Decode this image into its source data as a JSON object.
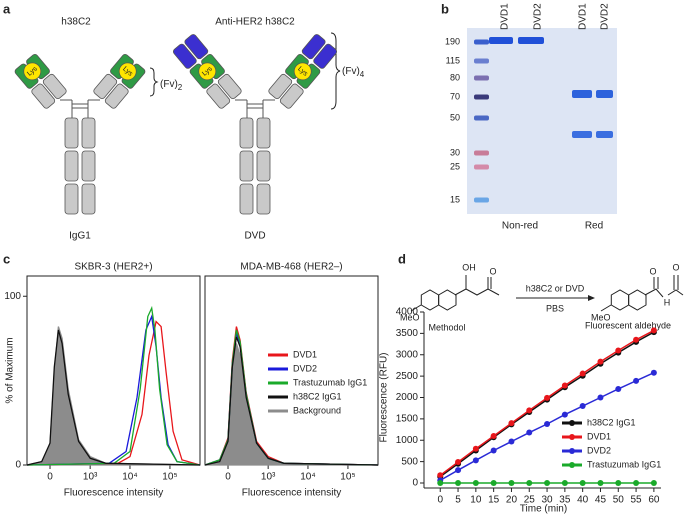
{
  "panel_labels": [
    "a",
    "b",
    "c",
    "d"
  ],
  "panel_a": {
    "titles": [
      "h38C2",
      "Anti-HER2 h38C2"
    ],
    "lys": "Lys",
    "fv2": {
      "text": "(Fv)",
      "sub": "2"
    },
    "fv4": {
      "text": "(Fv)",
      "sub": "4"
    },
    "captions": [
      "IgG1",
      "DVD"
    ]
  },
  "panel_b": {
    "lanes": [
      "DVD1",
      "DVD2",
      "DVD1",
      "DVD2"
    ],
    "ladder": [
      190,
      115,
      80,
      70,
      50,
      30,
      25,
      15
    ],
    "conditions": [
      "Non-red",
      "Red"
    ]
  },
  "scheme": {
    "substrate": "Methodol",
    "product": "Fluorescent aldehyde",
    "catalyst": "h38C2 or DVD",
    "buffer": "PBS",
    "atoms": {
      "oh": "OH",
      "o": "O",
      "meo": "MeO",
      "h": "H"
    }
  },
  "chart_data": [
    {
      "type": "line",
      "title": "SKBR-3 (HER2+)",
      "x_label": "Fluorescence intensity",
      "y_label": "% of Maximum",
      "xscale": "biexponential",
      "xlim": [
        -350,
        565000
      ],
      "xticks": [
        0,
        {
          "value": 1000,
          "label": "10³"
        },
        {
          "value": 10000,
          "label": "10⁴"
        },
        {
          "value": 100000,
          "label": "10⁵"
        }
      ],
      "ylim": [
        0,
        112
      ],
      "yticks": [
        0,
        100
      ],
      "series": [
        {
          "color": "#e8161b",
          "x": [
            -350,
            5000,
            10000,
            20000,
            30000,
            45000,
            60000,
            80000,
            120000,
            200000,
            565000
          ],
          "values": [
            0,
            1,
            5,
            30,
            65,
            85,
            82,
            55,
            20,
            3,
            0
          ]
        },
        {
          "color": "#1a1adb",
          "x": [
            -350,
            3000,
            8000,
            15000,
            25000,
            35000,
            45000,
            60000,
            90000,
            150000,
            565000
          ],
          "values": [
            0,
            1,
            8,
            40,
            80,
            88,
            70,
            40,
            12,
            2,
            0
          ]
        },
        {
          "color": "#1aaa2a",
          "x": [
            -350,
            4000,
            10000,
            18000,
            28000,
            35000,
            42000,
            55000,
            85000,
            150000,
            565000
          ],
          "values": [
            0,
            1,
            8,
            45,
            88,
            93,
            80,
            45,
            12,
            2,
            0
          ]
        },
        {
          "color": "#111111",
          "x": [
            -350,
            -100,
            0,
            50,
            100,
            150,
            250,
            500,
            1000,
            2500,
            565000
          ],
          "values": [
            0,
            2,
            13,
            58,
            80,
            72,
            42,
            14,
            4,
            1,
            0
          ]
        },
        {
          "color": "#8c8c8c",
          "fill": true,
          "x": [
            -350,
            -100,
            0,
            50,
            100,
            150,
            250,
            500,
            1000,
            2500,
            565000
          ],
          "values": [
            0,
            2,
            12,
            55,
            82,
            75,
            45,
            15,
            5,
            1,
            0
          ]
        }
      ]
    },
    {
      "type": "line",
      "title": "MDA-MB-468 (HER2–)",
      "x_label": "Fluorescence intensity",
      "xscale": "biexponential",
      "xlim": [
        -350,
        565000
      ],
      "xticks": [
        0,
        {
          "value": 1000,
          "label": "10³"
        },
        {
          "value": 10000,
          "label": "10⁴"
        },
        {
          "value": 100000,
          "label": "10⁵"
        }
      ],
      "ylim": [
        0,
        112
      ],
      "legend": "center right",
      "x": [
        -350,
        -100,
        0,
        50,
        100,
        150,
        250,
        500,
        1000,
        2500,
        565000
      ],
      "series": [
        {
          "name": "DVD1",
          "color": "#e8161b",
          "values": [
            0,
            3,
            16,
            62,
            82,
            74,
            43,
            14,
            5,
            1,
            0
          ]
        },
        {
          "name": "DVD2",
          "color": "#1a1adb",
          "values": [
            0,
            3,
            15,
            60,
            78,
            72,
            42,
            13,
            4,
            1,
            0
          ]
        },
        {
          "name": "Trastuzumab IgG1",
          "color": "#1aaa2a",
          "values": [
            0,
            3,
            15,
            60,
            80,
            73,
            42,
            13,
            4,
            1,
            0
          ]
        },
        {
          "name": "h38C2 IgG1",
          "color": "#111111",
          "values": [
            0,
            2,
            14,
            58,
            76,
            70,
            40,
            13,
            4,
            1,
            0
          ]
        },
        {
          "name": "Background",
          "color": "#8c8c8c",
          "fill": true,
          "values": [
            0,
            2,
            14,
            55,
            72,
            65,
            38,
            12,
            4,
            1,
            0
          ]
        }
      ]
    },
    {
      "type": "line",
      "x_label": "Time (min)",
      "y_label": "Fluorescence (RFU)",
      "markers": true,
      "x": [
        0,
        5,
        10,
        15,
        20,
        25,
        30,
        35,
        40,
        45,
        50,
        55,
        60
      ],
      "xlim": [
        -4,
        62
      ],
      "xticks": [
        0,
        5,
        10,
        15,
        20,
        25,
        30,
        35,
        40,
        45,
        50,
        55,
        60
      ],
      "ylim": [
        0,
        4000
      ],
      "yticks": [
        0,
        500,
        1000,
        1500,
        2000,
        2500,
        3000,
        3500,
        4000
      ],
      "legend": "center right",
      "series": [
        {
          "name": "h38C2 IgG1",
          "color": "#111111",
          "values": [
            150,
            450,
            760,
            1070,
            1370,
            1660,
            1950,
            2240,
            2510,
            2790,
            3050,
            3300,
            3530
          ]
        },
        {
          "name": "DVD1",
          "color": "#e8161b",
          "values": [
            180,
            490,
            800,
            1100,
            1400,
            1700,
            1990,
            2280,
            2560,
            2840,
            3100,
            3350,
            3570
          ]
        },
        {
          "name": "DVD2",
          "color": "#2a2ad6",
          "values": [
            60,
            300,
            530,
            760,
            970,
            1180,
            1380,
            1600,
            1800,
            2000,
            2200,
            2390,
            2580
          ]
        },
        {
          "name": "Trastuzumab IgG1",
          "color": "#1aaa2a",
          "values": [
            0,
            0,
            0,
            0,
            0,
            0,
            0,
            0,
            0,
            0,
            0,
            0,
            0
          ]
        }
      ]
    }
  ]
}
